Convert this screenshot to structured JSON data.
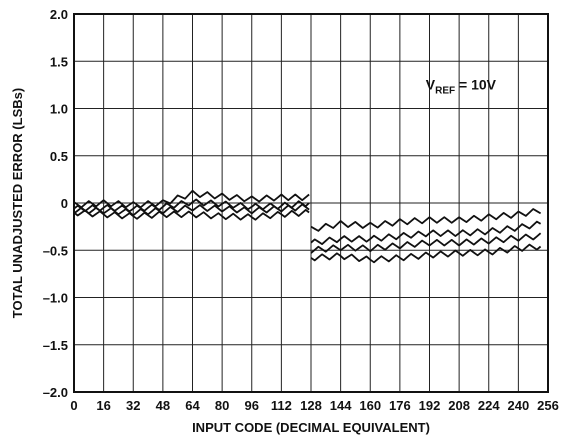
{
  "chart_data": {
    "type": "line",
    "title": "",
    "xlabel": "INPUT CODE (DECIMAL EQUIVALENT)",
    "ylabel": "TOTAL UNADJUSTED ERROR (LSBs)",
    "xlim": [
      0,
      256
    ],
    "ylim": [
      -2.0,
      2.0
    ],
    "x_ticks": [
      0,
      16,
      32,
      48,
      64,
      80,
      96,
      112,
      128,
      144,
      160,
      176,
      192,
      208,
      224,
      240,
      256
    ],
    "x_tick_labels": [
      "0",
      "16",
      "32",
      "48",
      "64",
      "80",
      "96",
      "112",
      "128",
      "144",
      "160",
      "176",
      "192",
      "208",
      "224",
      "240",
      "256"
    ],
    "y_ticks": [
      -2.0,
      -1.5,
      -1.0,
      -0.5,
      0,
      0.5,
      1.0,
      1.5,
      2.0
    ],
    "y_tick_labels": [
      "–2.0",
      "–1.5",
      "–1.0",
      "–0.5",
      "0",
      "0.5",
      "1.0",
      "1.5",
      "2.0"
    ],
    "grid": true,
    "annotation": {
      "main": "V",
      "sub": "REF",
      "rest": " = 10V"
    },
    "series": [
      {
        "x": [
          0,
          16,
          32,
          48,
          64,
          80,
          96,
          112,
          127,
          128,
          144,
          160,
          176,
          192,
          208,
          224,
          240,
          252
        ],
        "y": [
          -0.02,
          0.0,
          -0.02,
          0.0,
          0.1,
          0.07,
          0.04,
          0.06,
          0.06,
          -0.28,
          -0.22,
          -0.24,
          -0.2,
          -0.18,
          -0.18,
          -0.15,
          -0.12,
          -0.08
        ]
      },
      {
        "x": [
          0,
          16,
          32,
          48,
          64,
          80,
          96,
          112,
          127,
          128,
          144,
          160,
          176,
          192,
          208,
          224,
          240,
          252
        ],
        "y": [
          -0.06,
          -0.05,
          -0.06,
          -0.04,
          0.01,
          -0.01,
          -0.04,
          -0.03,
          0.0,
          -0.42,
          -0.38,
          -0.38,
          -0.35,
          -0.32,
          -0.32,
          -0.3,
          -0.26,
          -0.22
        ]
      },
      {
        "x": [
          0,
          16,
          32,
          48,
          64,
          80,
          96,
          112,
          127,
          128,
          144,
          160,
          176,
          192,
          208,
          224,
          240,
          252
        ],
        "y": [
          -0.08,
          -0.08,
          -0.1,
          -0.08,
          -0.05,
          -0.06,
          -0.08,
          -0.06,
          -0.04,
          -0.5,
          -0.47,
          -0.48,
          -0.45,
          -0.42,
          -0.42,
          -0.4,
          -0.37,
          -0.35
        ]
      },
      {
        "x": [
          0,
          16,
          32,
          48,
          64,
          80,
          96,
          112,
          127,
          128,
          144,
          160,
          176,
          192,
          208,
          224,
          240,
          252
        ],
        "y": [
          -0.1,
          -0.12,
          -0.14,
          -0.12,
          -0.12,
          -0.14,
          -0.15,
          -0.12,
          -0.1,
          -0.58,
          -0.56,
          -0.6,
          -0.58,
          -0.55,
          -0.53,
          -0.52,
          -0.48,
          -0.46
        ]
      }
    ]
  }
}
